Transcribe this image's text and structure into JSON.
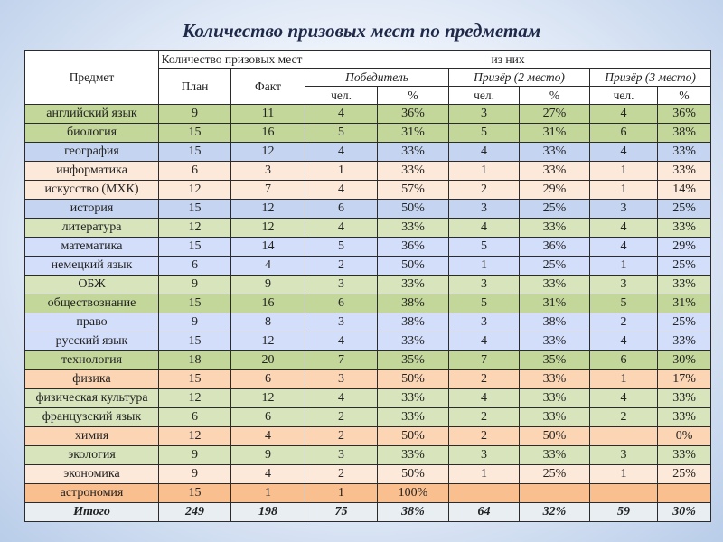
{
  "title": "Количество призовых мест по предметам",
  "header": {
    "subject": "Предмет",
    "count": "Количество призовых мест",
    "plan": "План",
    "fact": "Факт",
    "of_them": "из них",
    "winner": "Победитель",
    "second": "Призёр (2 место)",
    "third": "Призёр (3 место)",
    "people": "чел.",
    "percent": "%"
  },
  "colors": {
    "dark_green": "#c4d79b",
    "light_green": "#d8e4bc",
    "blue": "#c5d5f1",
    "light_blue": "#d3defa",
    "light_peach": "#fde9d9",
    "peach": "#fcd5b4",
    "orange": "#fabf8f"
  },
  "rows": [
    {
      "subject": "английский язык",
      "plan": "9",
      "fact": "11",
      "w": "4",
      "wp": "36%",
      "s": "3",
      "sp": "27%",
      "t": "4",
      "tp": "36%",
      "color": "dark_green"
    },
    {
      "subject": "биология",
      "plan": "15",
      "fact": "16",
      "w": "5",
      "wp": "31%",
      "s": "5",
      "sp": "31%",
      "t": "6",
      "tp": "38%",
      "color": "dark_green"
    },
    {
      "subject": "география",
      "plan": "15",
      "fact": "12",
      "w": "4",
      "wp": "33%",
      "s": "4",
      "sp": "33%",
      "t": "4",
      "tp": "33%",
      "color": "blue"
    },
    {
      "subject": "информатика",
      "plan": "6",
      "fact": "3",
      "w": "1",
      "wp": "33%",
      "s": "1",
      "sp": "33%",
      "t": "1",
      "tp": "33%",
      "color": "light_peach"
    },
    {
      "subject": "искусство (МХК)",
      "plan": "12",
      "fact": "7",
      "w": "4",
      "wp": "57%",
      "s": "2",
      "sp": "29%",
      "t": "1",
      "tp": "14%",
      "color": "light_peach"
    },
    {
      "subject": "история",
      "plan": "15",
      "fact": "12",
      "w": "6",
      "wp": "50%",
      "s": "3",
      "sp": "25%",
      "t": "3",
      "tp": "25%",
      "color": "blue"
    },
    {
      "subject": "литература",
      "plan": "12",
      "fact": "12",
      "w": "4",
      "wp": "33%",
      "s": "4",
      "sp": "33%",
      "t": "4",
      "tp": "33%",
      "color": "light_green"
    },
    {
      "subject": "математика",
      "plan": "15",
      "fact": "14",
      "w": "5",
      "wp": "36%",
      "s": "5",
      "sp": "36%",
      "t": "4",
      "tp": "29%",
      "color": "light_blue"
    },
    {
      "subject": "немецкий язык",
      "plan": "6",
      "fact": "4",
      "w": "2",
      "wp": "50%",
      "s": "1",
      "sp": "25%",
      "t": "1",
      "tp": "25%",
      "color": "light_blue"
    },
    {
      "subject": "ОБЖ",
      "plan": "9",
      "fact": "9",
      "w": "3",
      "wp": "33%",
      "s": "3",
      "sp": "33%",
      "t": "3",
      "tp": "33%",
      "color": "light_green"
    },
    {
      "subject": "обществознание",
      "plan": "15",
      "fact": "16",
      "w": "6",
      "wp": "38%",
      "s": "5",
      "sp": "31%",
      "t": "5",
      "tp": "31%",
      "color": "dark_green"
    },
    {
      "subject": "право",
      "plan": "9",
      "fact": "8",
      "w": "3",
      "wp": "38%",
      "s": "3",
      "sp": "38%",
      "t": "2",
      "tp": "25%",
      "color": "light_blue"
    },
    {
      "subject": "русский язык",
      "plan": "15",
      "fact": "12",
      "w": "4",
      "wp": "33%",
      "s": "4",
      "sp": "33%",
      "t": "4",
      "tp": "33%",
      "color": "light_blue"
    },
    {
      "subject": "технология",
      "plan": "18",
      "fact": "20",
      "w": "7",
      "wp": "35%",
      "s": "7",
      "sp": "35%",
      "t": "6",
      "tp": "30%",
      "color": "dark_green"
    },
    {
      "subject": "физика",
      "plan": "15",
      "fact": "6",
      "w": "3",
      "wp": "50%",
      "s": "2",
      "sp": "33%",
      "t": "1",
      "tp": "17%",
      "color": "peach"
    },
    {
      "subject": "физическая культура",
      "plan": "12",
      "fact": "12",
      "w": "4",
      "wp": "33%",
      "s": "4",
      "sp": "33%",
      "t": "4",
      "tp": "33%",
      "color": "light_green"
    },
    {
      "subject": "французский язык",
      "plan": "6",
      "fact": "6",
      "w": "2",
      "wp": "33%",
      "s": "2",
      "sp": "33%",
      "t": "2",
      "tp": "33%",
      "color": "light_green"
    },
    {
      "subject": "химия",
      "plan": "12",
      "fact": "4",
      "w": "2",
      "wp": "50%",
      "s": "2",
      "sp": "50%",
      "t": "",
      "tp": "0%",
      "color": "peach"
    },
    {
      "subject": "экология",
      "plan": "9",
      "fact": "9",
      "w": "3",
      "wp": "33%",
      "s": "3",
      "sp": "33%",
      "t": "3",
      "tp": "33%",
      "color": "light_green"
    },
    {
      "subject": "экономика",
      "plan": "9",
      "fact": "4",
      "w": "2",
      "wp": "50%",
      "s": "1",
      "sp": "25%",
      "t": "1",
      "tp": "25%",
      "color": "light_peach"
    },
    {
      "subject": "астрономия",
      "plan": "15",
      "fact": "1",
      "w": "1",
      "wp": "100%",
      "s": "",
      "sp": "",
      "t": "",
      "tp": "",
      "color": "orange"
    }
  ],
  "total": {
    "subject": "Итого",
    "plan": "249",
    "fact": "198",
    "w": "75",
    "wp": "38%",
    "s": "64",
    "sp": "32%",
    "t": "59",
    "tp": "30%"
  }
}
